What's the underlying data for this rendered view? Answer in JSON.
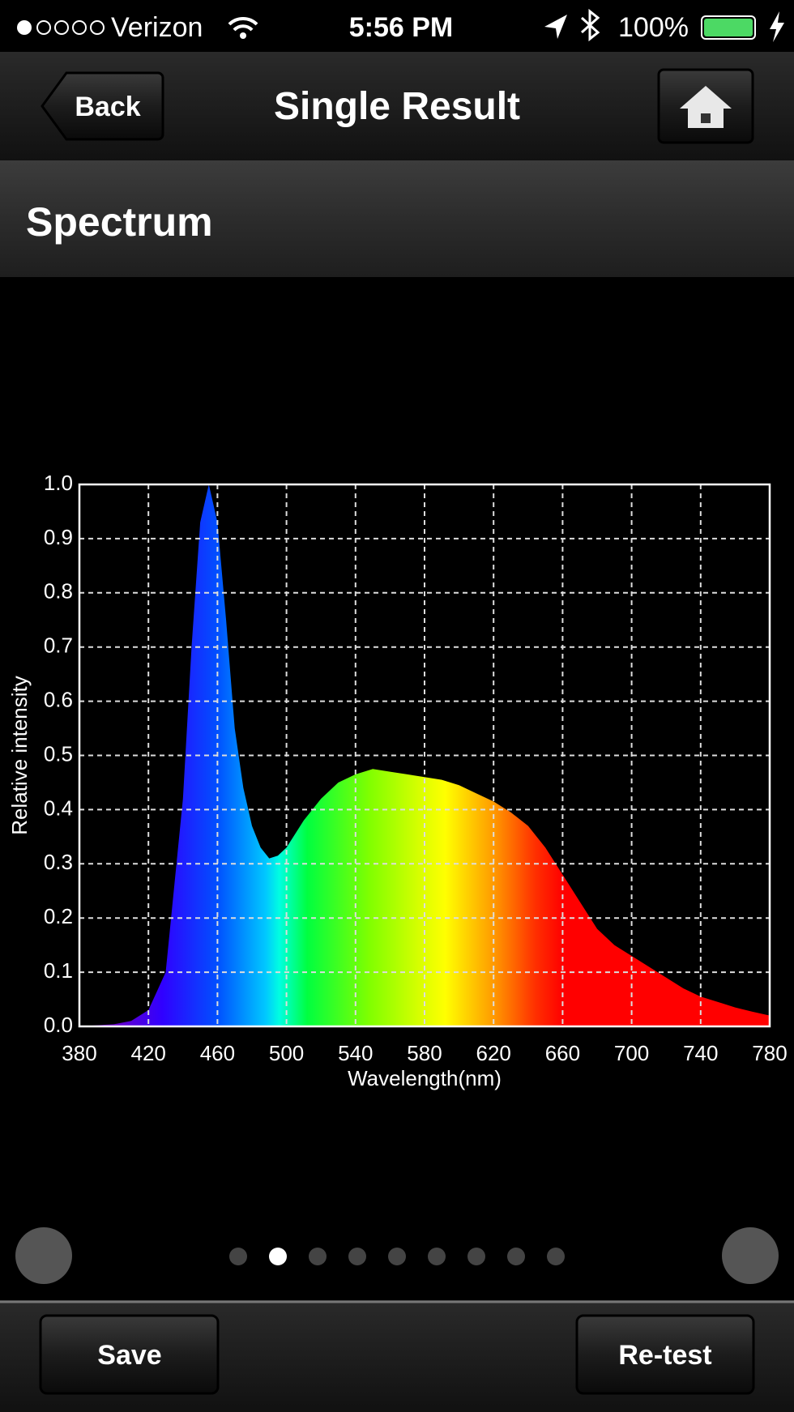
{
  "status_bar": {
    "carrier": "Verizon",
    "time": "5:56 PM",
    "battery": "100%"
  },
  "nav": {
    "back": "Back",
    "title": "Single Result"
  },
  "section": "Spectrum",
  "chart_data": {
    "type": "area",
    "x": [
      380,
      390,
      400,
      410,
      420,
      430,
      440,
      445,
      450,
      455,
      460,
      465,
      470,
      475,
      480,
      485,
      490,
      495,
      500,
      510,
      520,
      530,
      540,
      550,
      560,
      570,
      580,
      590,
      600,
      610,
      620,
      630,
      640,
      650,
      660,
      670,
      680,
      690,
      700,
      710,
      720,
      730,
      740,
      750,
      760,
      770,
      780
    ],
    "values": [
      0.0,
      0.002,
      0.004,
      0.01,
      0.03,
      0.1,
      0.42,
      0.7,
      0.93,
      1.0,
      0.93,
      0.75,
      0.55,
      0.44,
      0.37,
      0.33,
      0.31,
      0.315,
      0.33,
      0.38,
      0.42,
      0.45,
      0.465,
      0.475,
      0.47,
      0.465,
      0.46,
      0.455,
      0.445,
      0.43,
      0.415,
      0.395,
      0.37,
      0.33,
      0.28,
      0.23,
      0.18,
      0.15,
      0.13,
      0.11,
      0.09,
      0.07,
      0.055,
      0.045,
      0.035,
      0.027,
      0.02
    ],
    "xlabel": "Wavelength(nm)",
    "ylabel": "Relative intensity",
    "xlim": [
      380,
      780
    ],
    "ylim": [
      0,
      1
    ],
    "xticks": [
      380,
      420,
      460,
      500,
      540,
      580,
      620,
      660,
      700,
      740,
      780
    ],
    "yticks": [
      {
        "value": 0,
        "label": "0.0"
      },
      0.1,
      0.2,
      0.3,
      0.4,
      0.5,
      0.6,
      0.7,
      0.8,
      0.9,
      {
        "value": 1,
        "label": "1.0"
      }
    ],
    "grid": true
  },
  "buttons": {
    "save": "Save",
    "retest": "Re-test"
  }
}
